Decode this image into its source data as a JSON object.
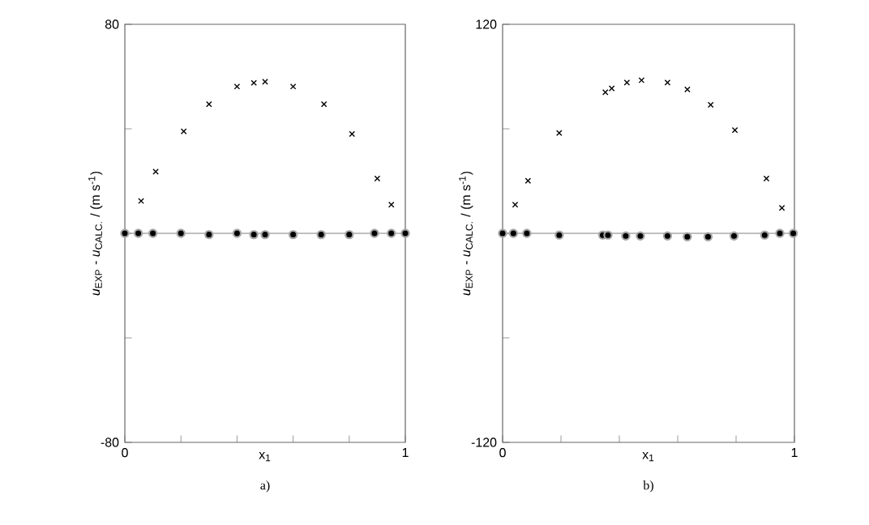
{
  "chart_data": [
    {
      "type": "scatter",
      "title": "a)",
      "xlabel": "x$_{1}$",
      "ylabel": "*u*$_{EXP}$ - *u*$_{CALC.}$ / (m s$^{-1}$)",
      "xlim": [
        0,
        1
      ],
      "xticks": [
        0,
        {
          "value": 0.2,
          "label": null
        },
        {
          "value": 0.4,
          "label": null
        },
        {
          "value": 0.6,
          "label": null
        },
        {
          "value": 0.8,
          "label": null
        },
        1
      ],
      "ylim": [
        -80,
        80
      ],
      "yticks": [
        -80,
        {
          "value": -40,
          "label": null
        },
        {
          "value": 0,
          "label": null
        },
        {
          "value": 40,
          "label": null
        },
        80
      ],
      "ref_lines": [
        {
          "axis": "y",
          "value": 0,
          "color": "#808080"
        }
      ],
      "series": [
        {
          "color": "#000000",
          "marker": "cross",
          "x": [
            0.058,
            0.11,
            0.21,
            0.3,
            0.4,
            0.46,
            0.5,
            0.6,
            0.71,
            0.81,
            0.9,
            0.95
          ],
          "values": [
            12.4,
            23.6,
            39,
            49.4,
            56.2,
            57.6,
            58,
            56.2,
            49.4,
            38,
            21,
            11
          ]
        },
        {
          "color": "#000000",
          "marker": "circle",
          "x": [
            0,
            0.048,
            0.1,
            0.2,
            0.3,
            0.4,
            0.46,
            0.5,
            0.6,
            0.7,
            0.8,
            0.89,
            0.95,
            1
          ],
          "values": [
            0,
            0,
            0,
            0,
            -0.5,
            0,
            -0.5,
            -0.5,
            -0.5,
            -0.5,
            -0.5,
            0,
            0,
            0
          ]
        }
      ]
    },
    {
      "type": "scatter",
      "title": "b)",
      "xlabel": "x$_{1}$",
      "ylabel": "*u*$_{EXP}$ - *u*$_{CALC.}$ / (m s$^{-1}$)",
      "xlim": [
        0,
        1
      ],
      "xticks": [
        0,
        {
          "value": 0.2,
          "label": null
        },
        {
          "value": 0.4,
          "label": null
        },
        {
          "value": 0.6,
          "label": null
        },
        {
          "value": 0.8,
          "label": null
        },
        1
      ],
      "ylim": [
        -120,
        120
      ],
      "yticks": [
        -120,
        {
          "value": -60,
          "label": null
        },
        {
          "value": 0,
          "label": null
        },
        {
          "value": 60,
          "label": null
        },
        120
      ],
      "ref_lines": [
        {
          "axis": "y",
          "value": 0,
          "color": "#808080"
        }
      ],
      "series": [
        {
          "color": "#000000",
          "marker": "cross",
          "x": [
            0.043,
            0.087,
            0.194,
            0.352,
            0.374,
            0.426,
            0.476,
            0.565,
            0.633,
            0.713,
            0.796,
            0.904,
            0.957
          ],
          "values": [
            16.5,
            30.2,
            57.6,
            81,
            83.2,
            86.6,
            87.9,
            86.6,
            82.6,
            73.8,
            59.2,
            31.5,
            14.6
          ]
        },
        {
          "color": "#000000",
          "marker": "circle",
          "x": [
            0,
            0.037,
            0.083,
            0.194,
            0.343,
            0.361,
            0.422,
            0.472,
            0.565,
            0.633,
            0.704,
            0.793,
            0.898,
            0.95,
            0.996
          ],
          "values": [
            0,
            0,
            0,
            -1,
            -1,
            -1,
            -1.5,
            -1.5,
            -1.5,
            -2,
            -2,
            -1.5,
            -1,
            0,
            0
          ]
        }
      ]
    }
  ]
}
